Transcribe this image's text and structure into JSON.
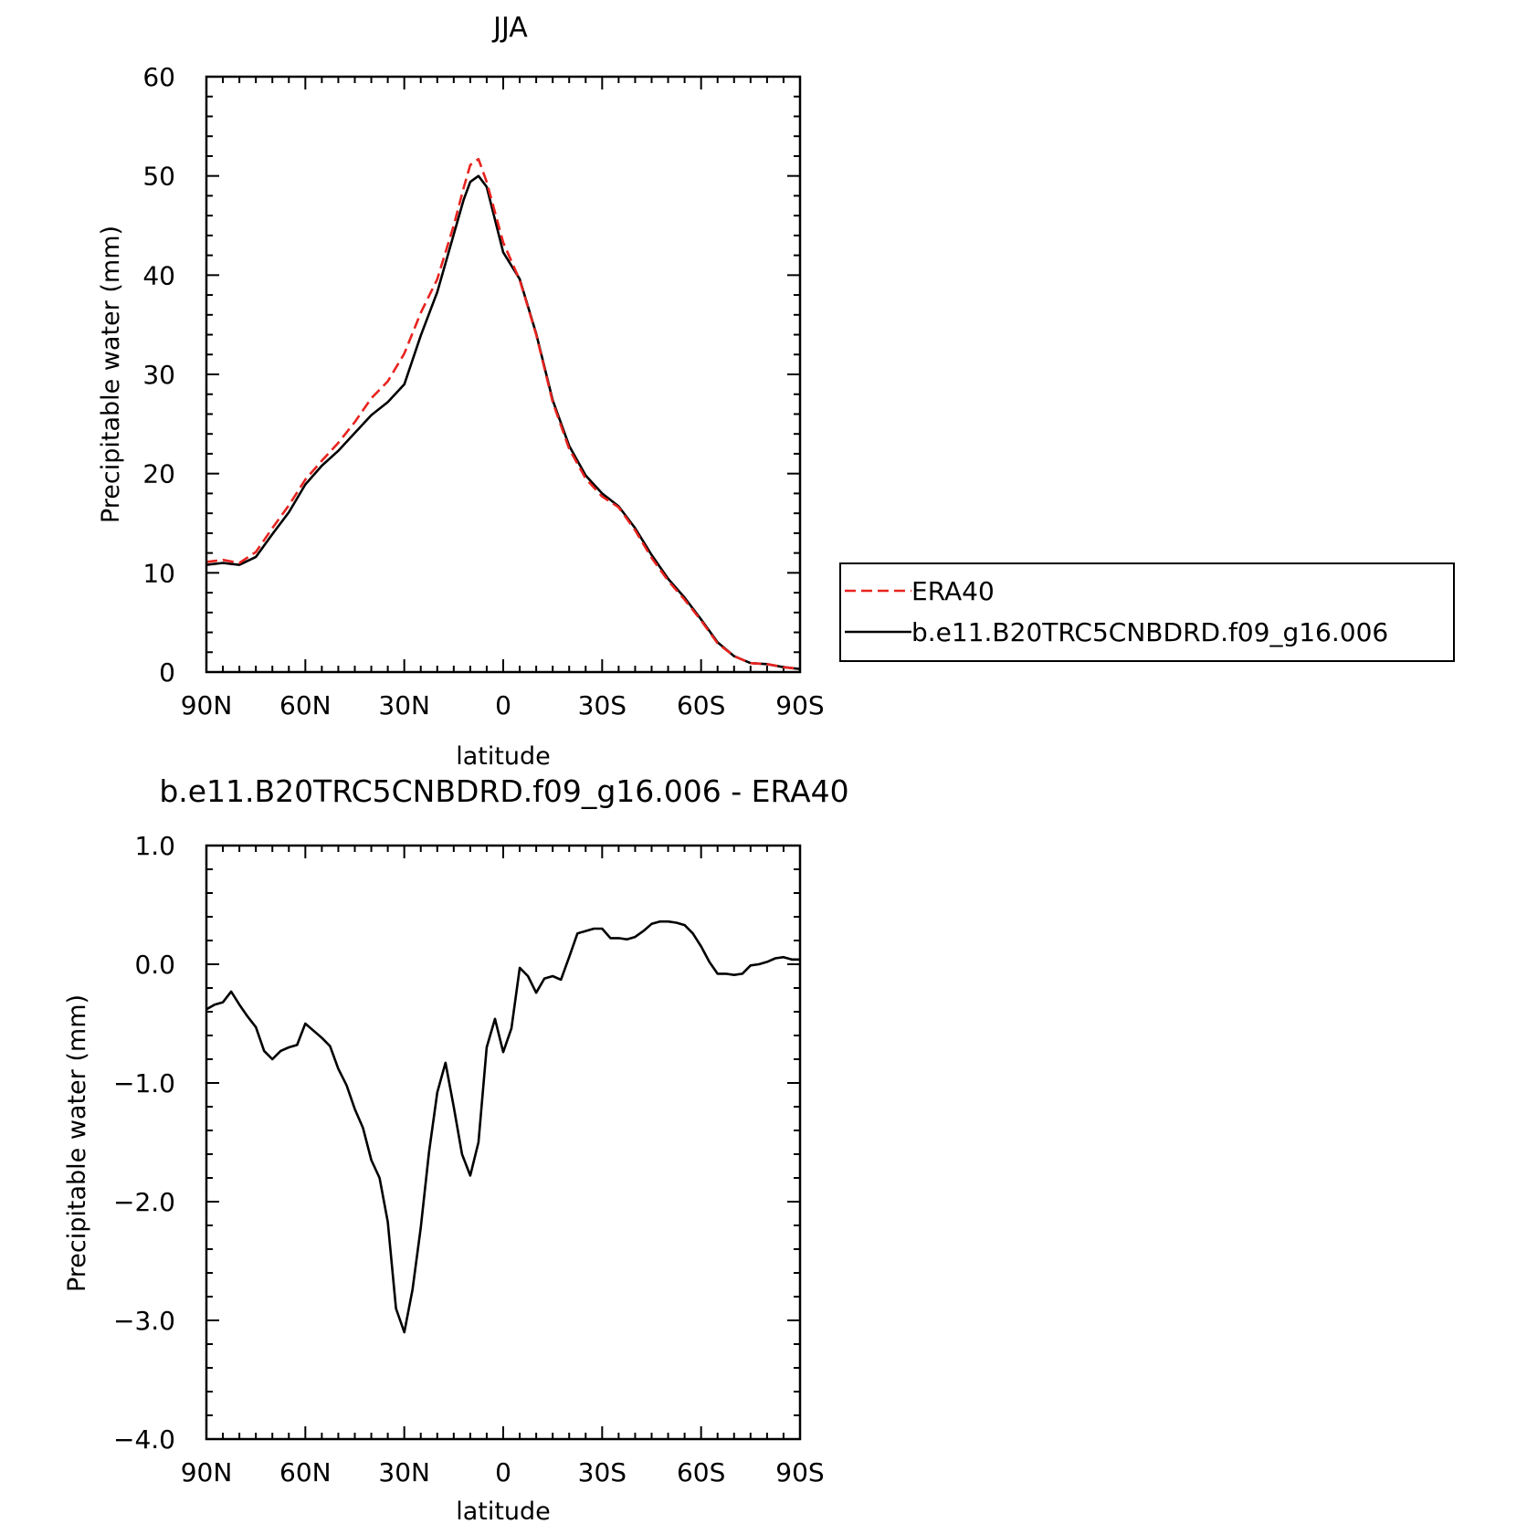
{
  "chart_data": [
    {
      "type": "line",
      "title": "JJA",
      "xlabel": "latitude",
      "ylabel": "Precipitable water (mm)",
      "xlim": [
        90,
        -90
      ],
      "ylim": [
        0,
        60
      ],
      "x_tick_values": [
        90,
        60,
        30,
        0,
        -30,
        -60,
        -90
      ],
      "x_tick_labels": [
        "90N",
        "60N",
        "30N",
        "0",
        "30S",
        "60S",
        "90S"
      ],
      "y_tick_values": [
        0,
        10,
        20,
        30,
        40,
        50,
        60
      ],
      "y_tick_labels": [
        "0",
        "10",
        "20",
        "30",
        "40",
        "50",
        "60"
      ],
      "legend": {
        "placement": "right",
        "entries": [
          "ERA40",
          "b.e11.B20TRC5CNBDRD.f09_g16.006"
        ]
      },
      "series": [
        {
          "name": "ERA40",
          "color": "#e8231f",
          "dash": true,
          "x": [
            90,
            85,
            80,
            75,
            70,
            65,
            60,
            55,
            50,
            45,
            40,
            35,
            30,
            25,
            20,
            15,
            12,
            10,
            7.5,
            5,
            0,
            -5,
            -10,
            -15,
            -20,
            -25,
            -30,
            -35,
            -40,
            -45,
            -50,
            -55,
            -60,
            -65,
            -70,
            -75,
            -80,
            -85,
            -90
          ],
          "values": [
            11.1,
            11.3,
            11.0,
            12.1,
            14.5,
            16.8,
            19.4,
            21.3,
            23.1,
            25.2,
            27.6,
            29.3,
            32.1,
            36.2,
            39.6,
            45.0,
            48.8,
            51.1,
            51.7,
            49.4,
            43.3,
            39.5,
            34.0,
            27.2,
            22.5,
            19.5,
            17.7,
            16.6,
            14.3,
            11.5,
            9.2,
            7.3,
            5.2,
            2.9,
            1.6,
            0.9,
            0.8,
            0.5,
            0.3
          ]
        },
        {
          "name": "b.e11.B20TRC5CNBDRD.f09_g16.006",
          "color": "#000000",
          "dash": false,
          "x": [
            90,
            85,
            80,
            75,
            70,
            65,
            60,
            55,
            50,
            45,
            40,
            35,
            30,
            25,
            20,
            15,
            12,
            10,
            7.5,
            5,
            0,
            -5,
            -10,
            -15,
            -20,
            -25,
            -30,
            -35,
            -40,
            -45,
            -50,
            -55,
            -60,
            -65,
            -70,
            -75,
            -80,
            -85,
            -90
          ],
          "values": [
            10.8,
            11.0,
            10.8,
            11.6,
            13.9,
            16.1,
            18.9,
            20.8,
            22.3,
            24.1,
            25.9,
            27.2,
            29.0,
            33.9,
            38.3,
            44.1,
            47.6,
            49.4,
            50.0,
            48.9,
            42.3,
            39.6,
            34.1,
            27.4,
            22.8,
            19.8,
            18.0,
            16.7,
            14.5,
            11.8,
            9.4,
            7.5,
            5.3,
            3.0,
            1.6,
            0.9,
            0.8,
            0.5,
            0.3
          ]
        }
      ]
    },
    {
      "type": "line",
      "title": "b.e11.B20TRC5CNBDRD.f09_g16.006 - ERA40",
      "xlabel": "latitude",
      "ylabel": "Precipitable water (mm)",
      "xlim": [
        90,
        -90
      ],
      "ylim": [
        -4.0,
        1.0
      ],
      "x_tick_values": [
        90,
        60,
        30,
        0,
        -30,
        -60,
        -90
      ],
      "x_tick_labels": [
        "90N",
        "60N",
        "30N",
        "0",
        "30S",
        "60S",
        "90S"
      ],
      "y_tick_values": [
        1.0,
        0.0,
        -1.0,
        -2.0,
        -3.0,
        -4.0
      ],
      "y_tick_labels": [
        "1.0",
        "0.0",
        "−1.0",
        "−2.0",
        "−3.0",
        "−4.0"
      ],
      "series": [
        {
          "color": "#000000",
          "x": [
            90,
            87.5,
            85,
            82.5,
            80,
            77.5,
            75,
            72.5,
            70,
            67.5,
            65,
            62.5,
            60,
            57.5,
            55,
            52.5,
            50,
            47.5,
            45,
            42.5,
            40,
            37.5,
            35,
            32.5,
            30,
            27.5,
            25,
            22.5,
            20,
            17.5,
            15,
            12.5,
            10,
            7.5,
            5,
            2.5,
            0,
            -2.5,
            -5,
            -7.5,
            -10,
            -12.5,
            -15,
            -17.5,
            -20,
            -22.5,
            -25,
            -27.5,
            -30,
            -32.5,
            -35,
            -37.5,
            -40,
            -42.5,
            -45,
            -47.5,
            -50,
            -52.5,
            -55,
            -57.5,
            -60,
            -62.5,
            -65,
            -67.5,
            -70,
            -72.5,
            -75,
            -77.5,
            -80,
            -82.5,
            -85,
            -87.5,
            -90
          ],
          "values": [
            -0.38,
            -0.34,
            -0.32,
            -0.23,
            -0.34,
            -0.44,
            -0.53,
            -0.73,
            -0.8,
            -0.73,
            -0.7,
            -0.68,
            -0.5,
            -0.56,
            -0.62,
            -0.69,
            -0.88,
            -1.02,
            -1.22,
            -1.38,
            -1.65,
            -1.8,
            -2.17,
            -2.9,
            -3.1,
            -2.74,
            -2.22,
            -1.58,
            -1.08,
            -0.83,
            -1.2,
            -1.6,
            -1.78,
            -1.5,
            -0.7,
            -0.46,
            -0.74,
            -0.54,
            -0.03,
            -0.1,
            -0.24,
            -0.12,
            -0.1,
            -0.13,
            0.06,
            0.26,
            0.28,
            0.3,
            0.3,
            0.22,
            0.22,
            0.21,
            0.23,
            0.28,
            0.34,
            0.36,
            0.36,
            0.35,
            0.33,
            0.26,
            0.15,
            0.02,
            -0.08,
            -0.08,
            -0.09,
            -0.08,
            -0.01,
            0.0,
            0.02,
            0.05,
            0.06,
            0.04,
            0.04
          ]
        }
      ]
    }
  ]
}
